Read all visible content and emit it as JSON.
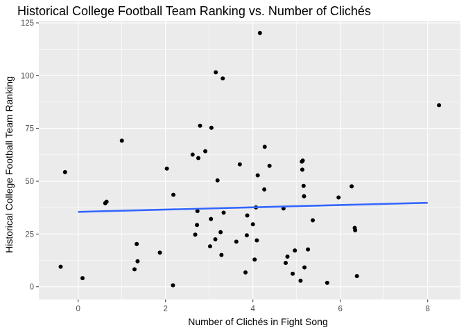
{
  "chart_data": {
    "type": "scatter",
    "title": "Historical College Football Team Ranking vs. Number of Clichés",
    "xlabel": "Number of Clichés in Fight Song",
    "ylabel": "Historical College Football Team Ranking",
    "xlim": [
      -0.9,
      8.75
    ],
    "ylim": [
      -6,
      126
    ],
    "x_ticks": [
      0,
      2,
      4,
      6,
      8
    ],
    "y_ticks": [
      0,
      25,
      50,
      75,
      100,
      125
    ],
    "x_tick_labels": [
      "0",
      "2",
      "4",
      "6",
      "8"
    ],
    "y_tick_labels": [
      "0",
      "25",
      "50",
      "75",
      "100",
      "125"
    ],
    "grid": true,
    "background": "#ebebeb",
    "grid_major_color": "#ffffff",
    "point_color": "#000000",
    "trend_color": "#3366ff",
    "trend_line": {
      "x": [
        0,
        8
      ],
      "y": [
        35.5,
        39.8
      ]
    },
    "points": [
      {
        "x": -0.4,
        "y": 9.5
      },
      {
        "x": -0.3,
        "y": 54.3
      },
      {
        "x": 0.1,
        "y": 4.1
      },
      {
        "x": 0.62,
        "y": 39.6
      },
      {
        "x": 0.65,
        "y": 40.3
      },
      {
        "x": 1.0,
        "y": 69.2
      },
      {
        "x": 1.29,
        "y": 8.3
      },
      {
        "x": 1.34,
        "y": 20.3
      },
      {
        "x": 1.36,
        "y": 12.1
      },
      {
        "x": 1.87,
        "y": 16.2
      },
      {
        "x": 2.03,
        "y": 56.0
      },
      {
        "x": 2.17,
        "y": 0.7
      },
      {
        "x": 2.18,
        "y": 43.6
      },
      {
        "x": 2.62,
        "y": 62.6
      },
      {
        "x": 2.68,
        "y": 24.7
      },
      {
        "x": 2.72,
        "y": 29.3
      },
      {
        "x": 2.73,
        "y": 35.9
      },
      {
        "x": 2.75,
        "y": 61.0
      },
      {
        "x": 2.79,
        "y": 76.3
      },
      {
        "x": 2.91,
        "y": 64.2
      },
      {
        "x": 3.02,
        "y": 19.2
      },
      {
        "x": 3.04,
        "y": 32.1
      },
      {
        "x": 3.05,
        "y": 75.3
      },
      {
        "x": 3.14,
        "y": 22.5
      },
      {
        "x": 3.15,
        "y": 101.6
      },
      {
        "x": 3.19,
        "y": 50.4
      },
      {
        "x": 3.26,
        "y": 25.9
      },
      {
        "x": 3.28,
        "y": 15.1
      },
      {
        "x": 3.31,
        "y": 98.7
      },
      {
        "x": 3.33,
        "y": 35.1
      },
      {
        "x": 3.62,
        "y": 21.4
      },
      {
        "x": 3.7,
        "y": 58.0
      },
      {
        "x": 3.83,
        "y": 6.8
      },
      {
        "x": 3.86,
        "y": 24.4
      },
      {
        "x": 3.87,
        "y": 33.8
      },
      {
        "x": 4.0,
        "y": 29.6
      },
      {
        "x": 4.04,
        "y": 12.9
      },
      {
        "x": 4.07,
        "y": 37.6
      },
      {
        "x": 4.09,
        "y": 22.0
      },
      {
        "x": 4.11,
        "y": 52.8
      },
      {
        "x": 4.16,
        "y": 120.2
      },
      {
        "x": 4.26,
        "y": 46.1
      },
      {
        "x": 4.27,
        "y": 66.3
      },
      {
        "x": 4.38,
        "y": 57.3
      },
      {
        "x": 4.7,
        "y": 37.1
      },
      {
        "x": 4.75,
        "y": 11.3
      },
      {
        "x": 4.79,
        "y": 14.3
      },
      {
        "x": 4.91,
        "y": 6.2
      },
      {
        "x": 4.96,
        "y": 17.2
      },
      {
        "x": 5.09,
        "y": 2.9
      },
      {
        "x": 5.12,
        "y": 59.3
      },
      {
        "x": 5.13,
        "y": 55.5
      },
      {
        "x": 5.14,
        "y": 59.8
      },
      {
        "x": 5.16,
        "y": 47.8
      },
      {
        "x": 5.17,
        "y": 42.9
      },
      {
        "x": 5.18,
        "y": 9.2
      },
      {
        "x": 5.26,
        "y": 17.7
      },
      {
        "x": 5.37,
        "y": 31.5
      },
      {
        "x": 5.7,
        "y": 1.9
      },
      {
        "x": 5.96,
        "y": 42.3
      },
      {
        "x": 6.26,
        "y": 47.6
      },
      {
        "x": 6.33,
        "y": 27.9
      },
      {
        "x": 6.34,
        "y": 26.8
      },
      {
        "x": 6.38,
        "y": 5.1
      },
      {
        "x": 8.26,
        "y": 86.0
      }
    ]
  }
}
